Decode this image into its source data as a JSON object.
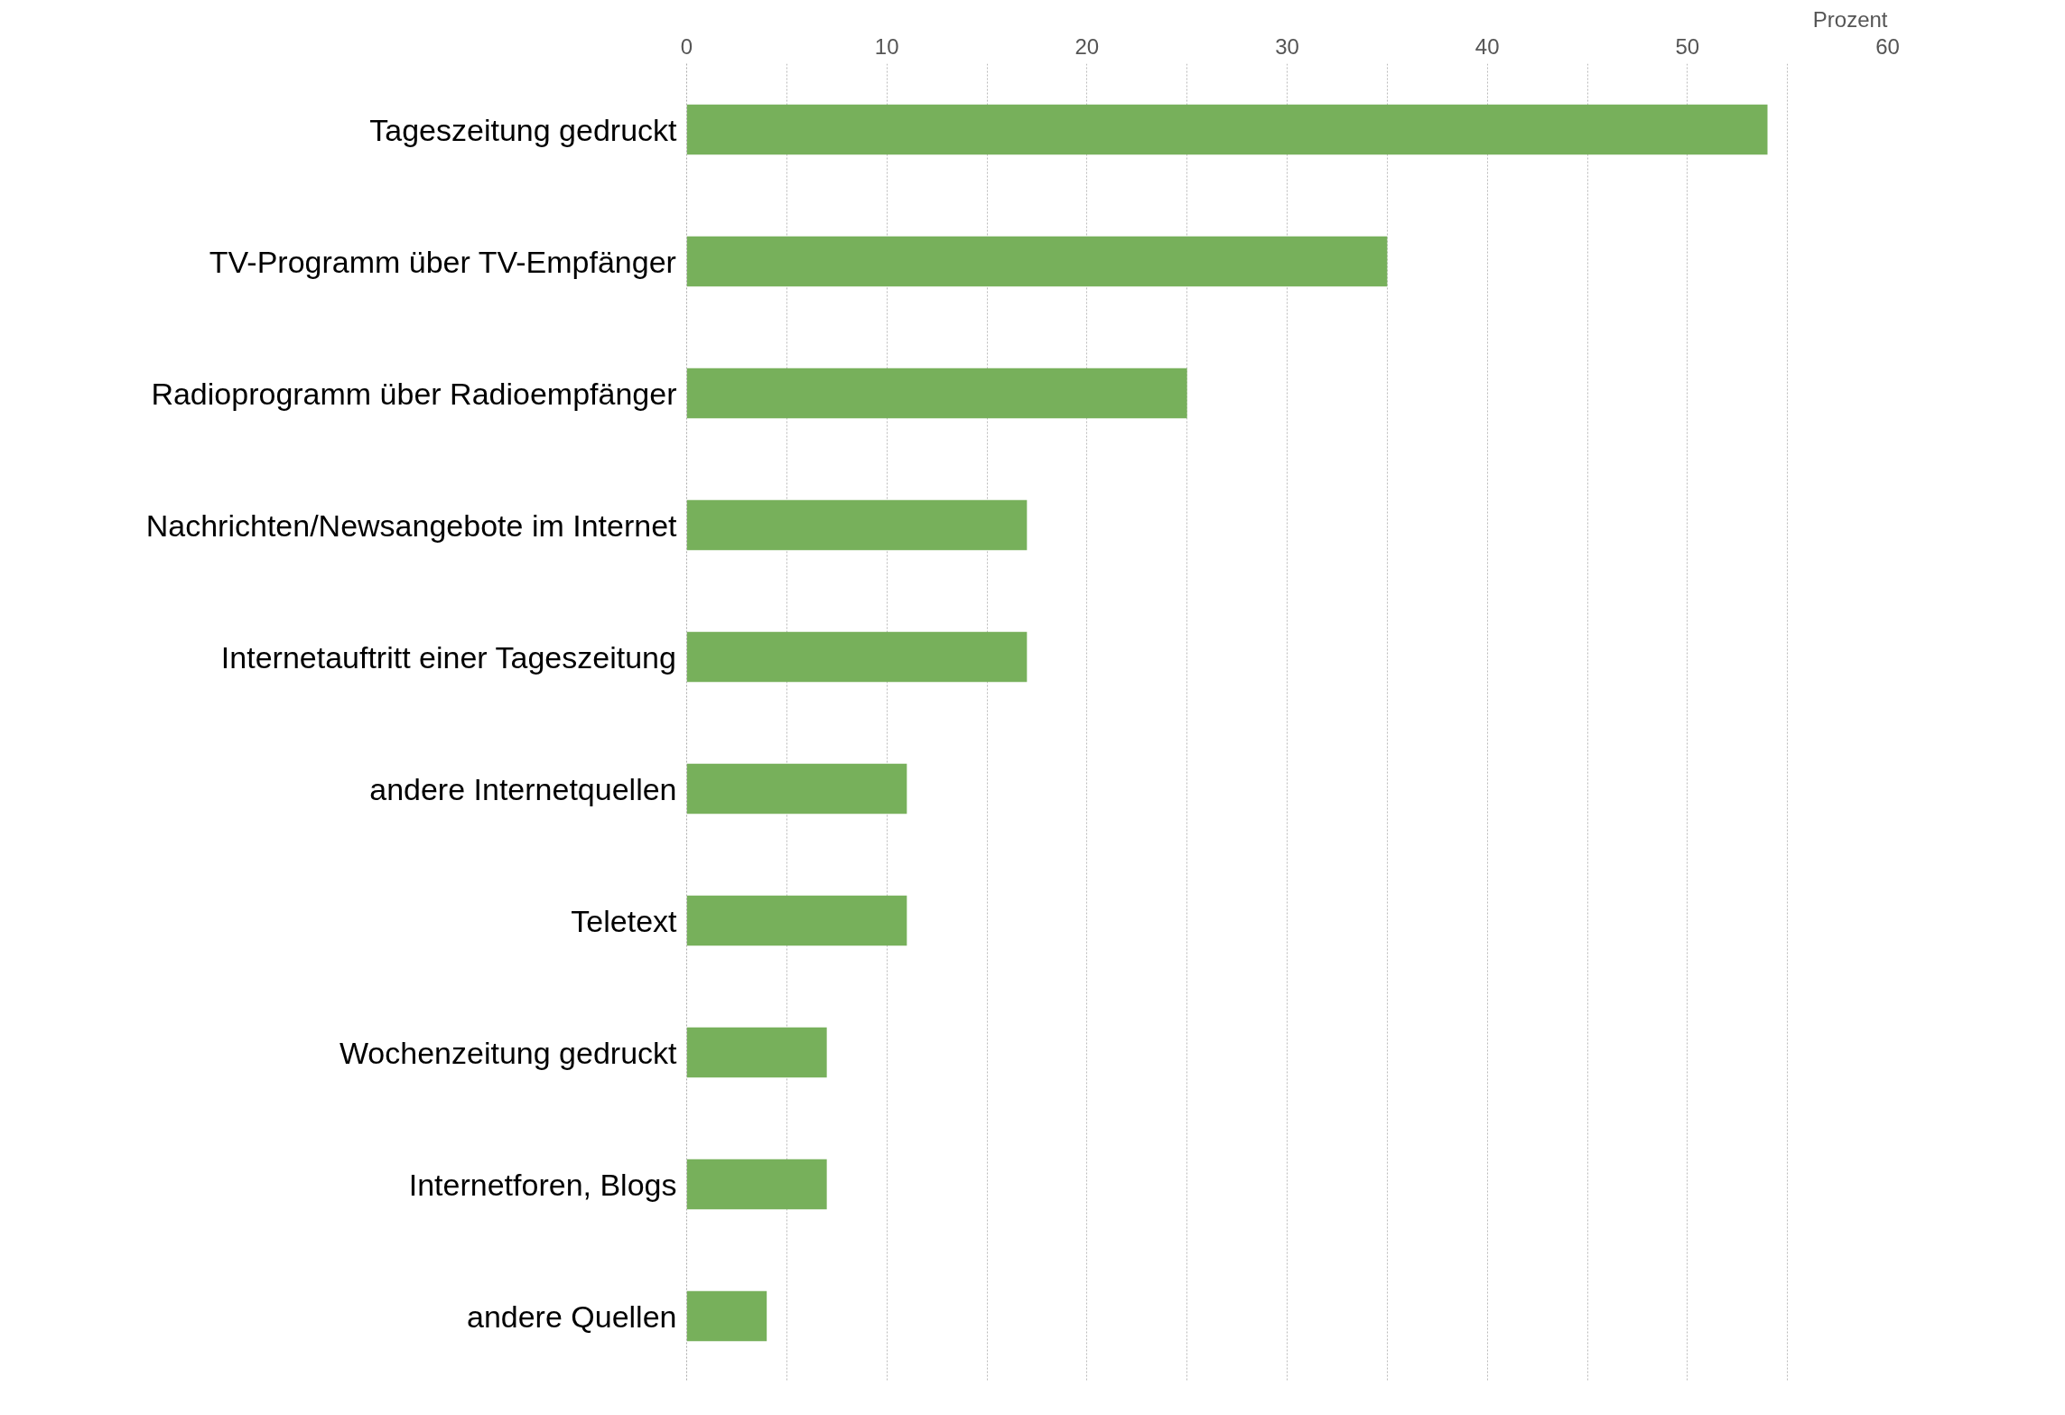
{
  "chart_data": {
    "type": "bar",
    "orientation": "horizontal",
    "xlabel": "Prozent",
    "categories": [
      "Tageszeitung gedruckt",
      "TV-Programm über TV-Empfänger",
      "Radioprogramm über Radioempfänger",
      "Nachrichten/Newsangebote im Internet",
      "Internetauftritt einer Tageszeitung",
      "andere Internetquellen",
      "Teletext",
      "Wochenzeitung gedruckt",
      "Internetforen, Blogs",
      "andere Quellen"
    ],
    "values": [
      54,
      35,
      25,
      17,
      17,
      11,
      11,
      7,
      7,
      4
    ],
    "color": "#77b05b",
    "xlim": [
      0,
      60
    ],
    "xticks": [
      0,
      {
        "value": 5,
        "label": null
      },
      10,
      {
        "value": 15,
        "label": null
      },
      20,
      {
        "value": 25,
        "label": null
      },
      30,
      {
        "value": 35,
        "label": null
      },
      40,
      {
        "value": 45,
        "label": null
      },
      50,
      {
        "value": 55,
        "label": null
      },
      60
    ],
    "grid": "x"
  }
}
